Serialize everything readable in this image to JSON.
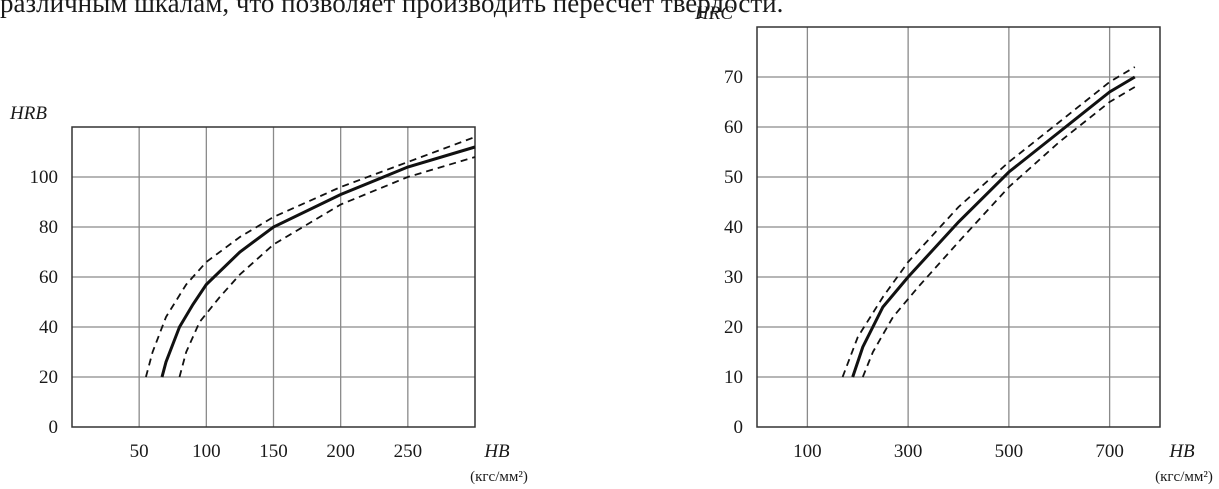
{
  "top_text": "различным шкалам, что позволяет производить пересчет твердости.",
  "chart_data": [
    {
      "type": "line",
      "ylabel": "HRB",
      "xlabel": "HB",
      "xunit": "(кгс/мм²)",
      "xlim": [
        0,
        300
      ],
      "ylim": [
        0,
        120
      ],
      "xticks": [
        50,
        100,
        150,
        200,
        250
      ],
      "yticks": [
        0,
        20,
        40,
        60,
        80,
        100
      ],
      "grid": true,
      "series": [
        {
          "style": "dashed",
          "x": [
            55,
            60,
            70,
            85,
            100,
            125,
            150,
            200,
            250,
            300
          ],
          "y": [
            20,
            30,
            44,
            57,
            66,
            76,
            84,
            96,
            106,
            116
          ]
        },
        {
          "style": "solid",
          "x": [
            67,
            70,
            80,
            90,
            100,
            125,
            150,
            200,
            250,
            300
          ],
          "y": [
            20,
            26,
            40,
            49,
            57,
            70,
            80,
            93,
            104,
            112
          ]
        },
        {
          "style": "dashed",
          "x": [
            80,
            85,
            95,
            110,
            125,
            150,
            200,
            250,
            300
          ],
          "y": [
            20,
            30,
            42,
            52,
            61,
            73,
            89,
            100,
            108
          ]
        }
      ]
    },
    {
      "type": "line",
      "ylabel": "HRC",
      "xlabel": "HB",
      "xunit": "(кгс/мм²)",
      "xlim": [
        0,
        800
      ],
      "ylim": [
        0,
        80
      ],
      "xticks": [
        100,
        300,
        500,
        700
      ],
      "yticks": [
        0,
        10,
        20,
        30,
        40,
        50,
        60,
        70
      ],
      "grid": true,
      "series": [
        {
          "style": "dashed",
          "x": [
            170,
            200,
            250,
            300,
            400,
            500,
            600,
            700,
            750
          ],
          "y": [
            10,
            18,
            26,
            33,
            44,
            53,
            61,
            69,
            72
          ]
        },
        {
          "style": "solid",
          "x": [
            190,
            210,
            250,
            300,
            400,
            500,
            600,
            700,
            750
          ],
          "y": [
            10,
            16,
            24,
            30,
            41,
            51,
            59,
            67,
            70
          ]
        },
        {
          "style": "dashed",
          "x": [
            210,
            230,
            270,
            320,
            400,
            500,
            600,
            700,
            750
          ],
          "y": [
            10,
            15,
            22,
            28,
            37,
            48,
            57,
            65,
            68
          ]
        }
      ]
    }
  ]
}
